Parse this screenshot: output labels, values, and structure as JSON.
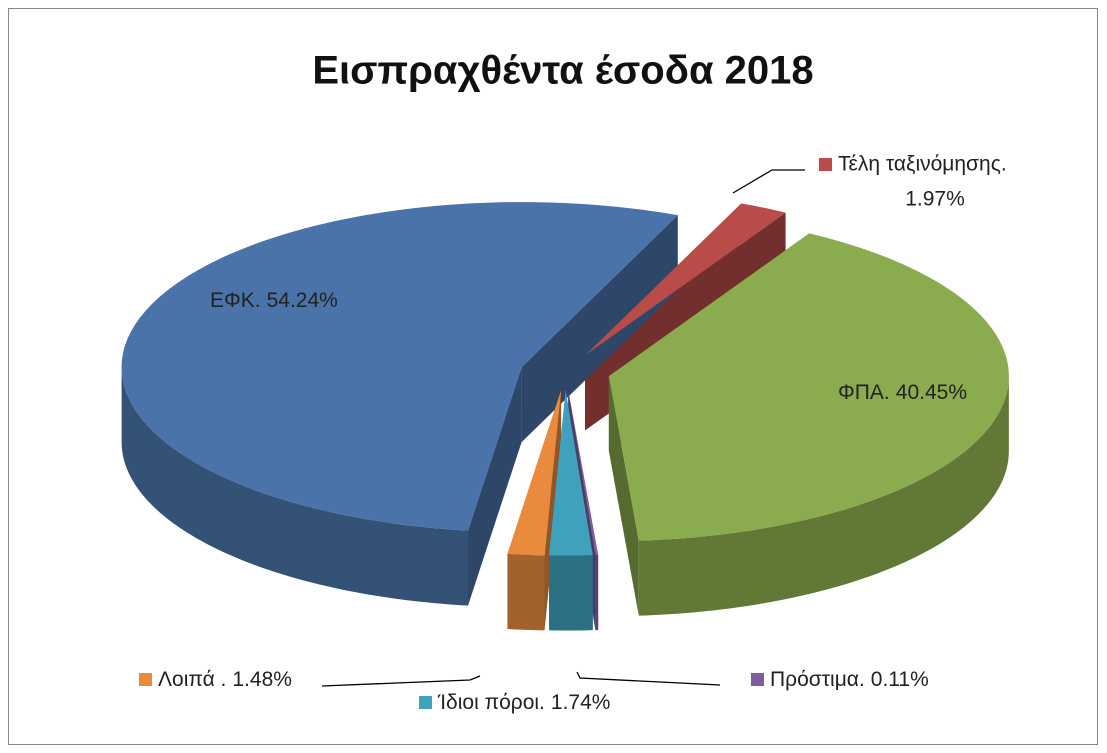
{
  "chart_data": {
    "type": "pie",
    "title": "Εισπραχθέντα έσοδα 2018",
    "categories": [
      "ΕΦΚ.",
      "Τέλη ταξινόμησης.",
      "ΦΠΑ.",
      "Πρόστιμα.",
      "Ίδιοι πόροι.",
      "Λοιπά ."
    ],
    "values": [
      54.24,
      1.97,
      40.45,
      0.11,
      1.74,
      1.48
    ],
    "value_labels": [
      "54.24%",
      "1.97%",
      "40.45%",
      "0.11%",
      "1.74%",
      "1.48%"
    ],
    "colors": [
      "#4a73a9",
      "#b94b48",
      "#8aac4e",
      "#7b5f9e",
      "#3fa1bb",
      "#e98a3d"
    ]
  }
}
